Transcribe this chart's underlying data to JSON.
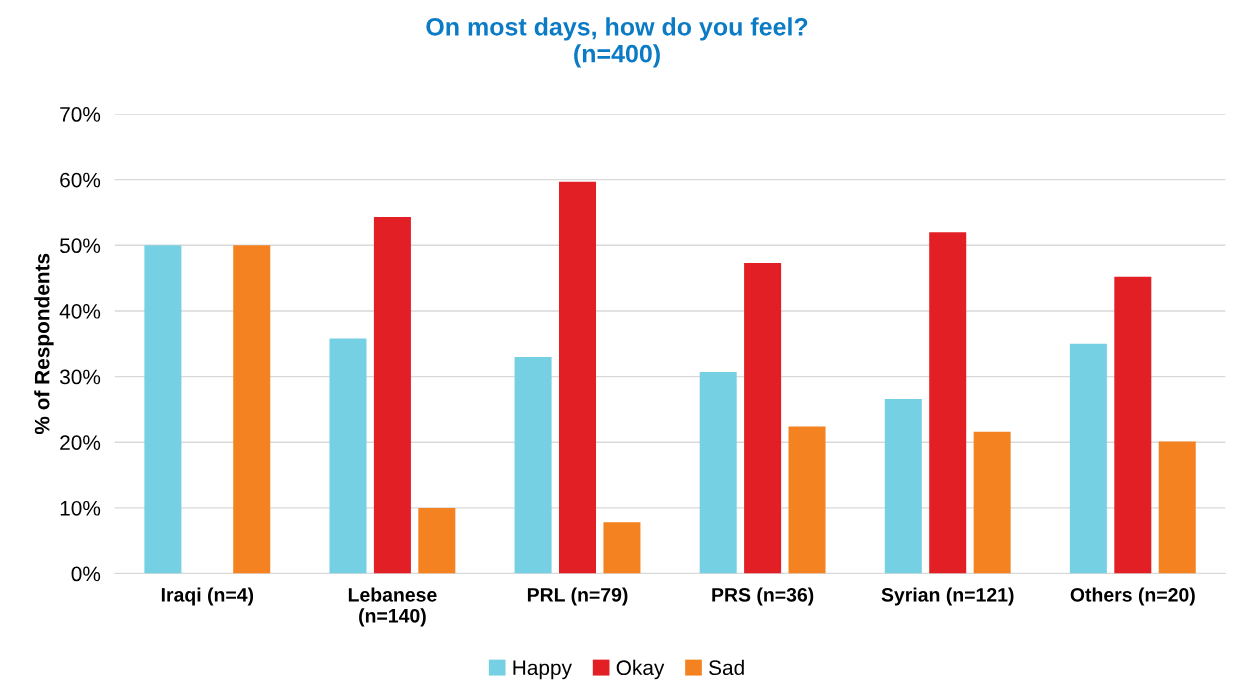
{
  "chart_data": {
    "type": "bar",
    "title": "On most days, how do you feel?\n(n=400)",
    "ylabel": "% of Respondents",
    "categories": [
      "Iraqi (n=4)",
      "Lebanese\n(n=140)",
      "PRL (n=79)",
      "PRS (n=36)",
      "Syrian (n=121)",
      "Others (n=20)"
    ],
    "series": [
      {
        "name": "Happy",
        "color": "#74d0e2",
        "values": [
          50,
          35.8,
          33,
          30.7,
          26.6,
          35
        ]
      },
      {
        "name": "Okay",
        "color": "#e31f26",
        "values": [
          0,
          54.3,
          59.7,
          47.3,
          52,
          45.2
        ]
      },
      {
        "name": "Sad",
        "color": "#f58220",
        "values": [
          50,
          10,
          7.8,
          22.4,
          21.6,
          20.1
        ]
      }
    ],
    "ylim": [
      0,
      70
    ],
    "yticks": [
      {
        "value": 0,
        "label": "0%"
      },
      {
        "value": 10,
        "label": "10%"
      },
      {
        "value": 20,
        "label": "20%"
      },
      {
        "value": 30,
        "label": "30%"
      },
      {
        "value": 40,
        "label": "40%"
      },
      {
        "value": 50,
        "label": "50%"
      },
      {
        "value": 60,
        "label": "60%"
      },
      {
        "value": 70,
        "label": "70%"
      }
    ],
    "grid": "y",
    "legend": "bottom"
  }
}
